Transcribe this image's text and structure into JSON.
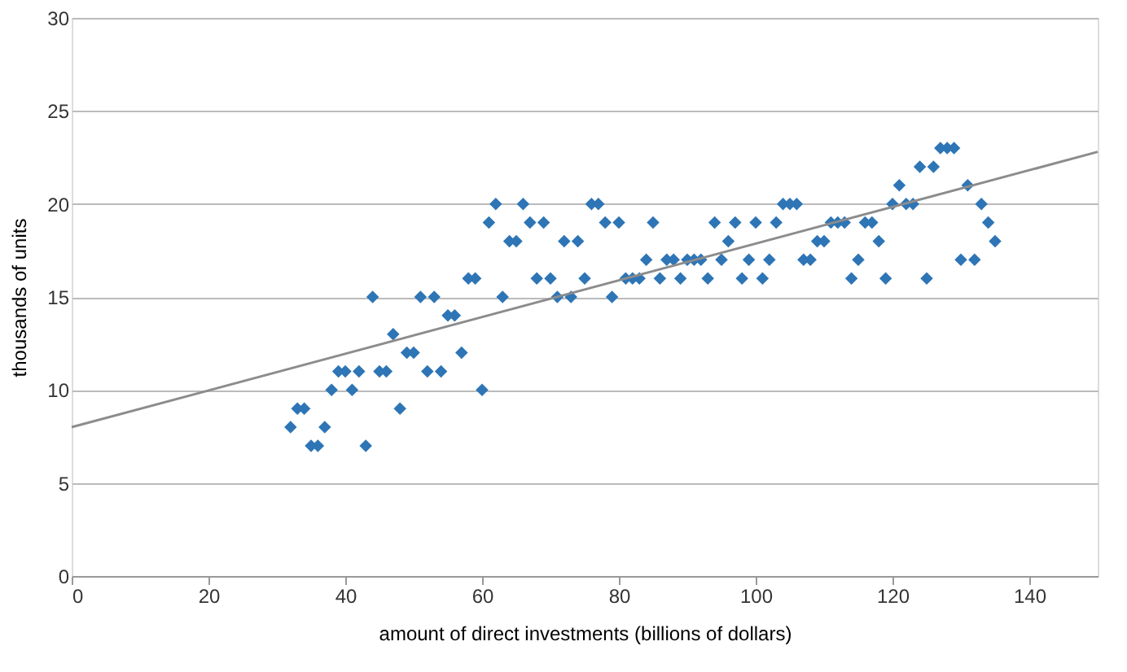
{
  "chart_data": {
    "type": "scatter",
    "xlabel": "amount of direct investments (billions of dollars)",
    "ylabel": "thousands of units",
    "xlim": [
      0,
      150
    ],
    "xticks": [
      0,
      20,
      40,
      60,
      80,
      100,
      120,
      140
    ],
    "ylim": [
      0,
      30
    ],
    "yticks": [
      0,
      5,
      10,
      15,
      20,
      25,
      30
    ],
    "grid": "y",
    "marker": "diamond",
    "series": [
      {
        "color": "#2e75b6",
        "x": [
          32,
          33,
          34,
          35,
          36,
          37,
          38,
          39,
          40,
          41,
          42,
          43,
          44,
          45,
          46,
          47,
          48,
          49,
          50,
          51,
          52,
          53,
          54,
          55,
          56,
          57,
          58,
          59,
          60,
          61,
          62,
          63,
          64,
          65,
          66,
          67,
          68,
          69,
          70,
          71,
          72,
          73,
          74,
          75,
          76,
          77,
          78,
          79,
          80,
          81,
          82,
          83,
          84,
          85,
          86,
          87,
          88,
          89,
          90,
          91,
          92,
          93,
          94,
          95,
          96,
          97,
          98,
          99,
          100,
          101,
          102,
          103,
          104,
          105,
          106,
          107,
          108,
          109,
          110,
          111,
          112,
          113,
          114,
          115,
          116,
          117,
          118,
          119,
          120,
          121,
          122,
          123,
          124,
          125,
          126,
          127,
          128,
          129,
          130,
          131,
          132,
          133,
          134,
          135
        ],
        "values": [
          8,
          9,
          9,
          7,
          7,
          8,
          10,
          11,
          11,
          10,
          11,
          7,
          15,
          11,
          11,
          13,
          9,
          12,
          12,
          15,
          11,
          15,
          11,
          14,
          14,
          12,
          16,
          16,
          10,
          19,
          20,
          15,
          18,
          18,
          20,
          19,
          16,
          19,
          16,
          15,
          18,
          15,
          18,
          16,
          20,
          20,
          19,
          15,
          19,
          16,
          16,
          16,
          17,
          19,
          16,
          17,
          17,
          16,
          17,
          17,
          17,
          16,
          19,
          17,
          18,
          19,
          16,
          17,
          19,
          16,
          17,
          19,
          20,
          20,
          20,
          17,
          17,
          18,
          18,
          19,
          19,
          19,
          16,
          17,
          19,
          19,
          18,
          16,
          20,
          21,
          20,
          20,
          22,
          16,
          22,
          23,
          23,
          23,
          17,
          21,
          17,
          20,
          19,
          18
        ]
      },
      {
        "type": "line",
        "color": "#8c8c8c",
        "x": [
          0,
          150
        ],
        "values": [
          8,
          22.8
        ],
        "marker": "none"
      }
    ]
  }
}
